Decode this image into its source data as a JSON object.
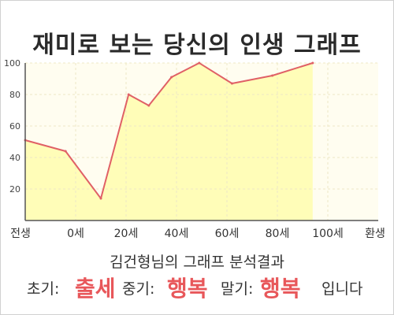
{
  "title": "재미로 보는 당신의 인생 그래프",
  "colors": {
    "area_fill": "#fffdb8",
    "line": "#e06066",
    "plot_bg": "#fffdf0",
    "grid": "#ece8c6",
    "highlight": "#e8575a"
  },
  "chart_data": {
    "type": "area",
    "title": "재미로 보는 당신의 인생 그래프",
    "xlabel": "",
    "ylabel": "",
    "ylim": [
      0,
      100
    ],
    "yticks": [
      20,
      40,
      60,
      80,
      100
    ],
    "x_tick_labels": [
      "전생",
      "0세",
      "20세",
      "40세",
      "60세",
      "80세",
      "100세",
      "환생"
    ],
    "grid": true,
    "legend": "none",
    "points": [
      {
        "x": 0,
        "y": 51
      },
      {
        "x": 0.8,
        "y": 44
      },
      {
        "x": 1.5,
        "y": 14
      },
      {
        "x": 2.05,
        "y": 80
      },
      {
        "x": 2.45,
        "y": 73
      },
      {
        "x": 2.9,
        "y": 91
      },
      {
        "x": 3.45,
        "y": 100
      },
      {
        "x": 4.1,
        "y": 87
      },
      {
        "x": 4.9,
        "y": 92
      },
      {
        "x": 5.7,
        "y": 100
      }
    ]
  },
  "caption": "김건형님의 그래프 분석결과",
  "summary": {
    "early_label": "초기:",
    "early_value": "출세",
    "mid_label": "중기:",
    "mid_value": "행복",
    "late_label": "말기:",
    "late_value": "행복",
    "ending": "입니다"
  }
}
